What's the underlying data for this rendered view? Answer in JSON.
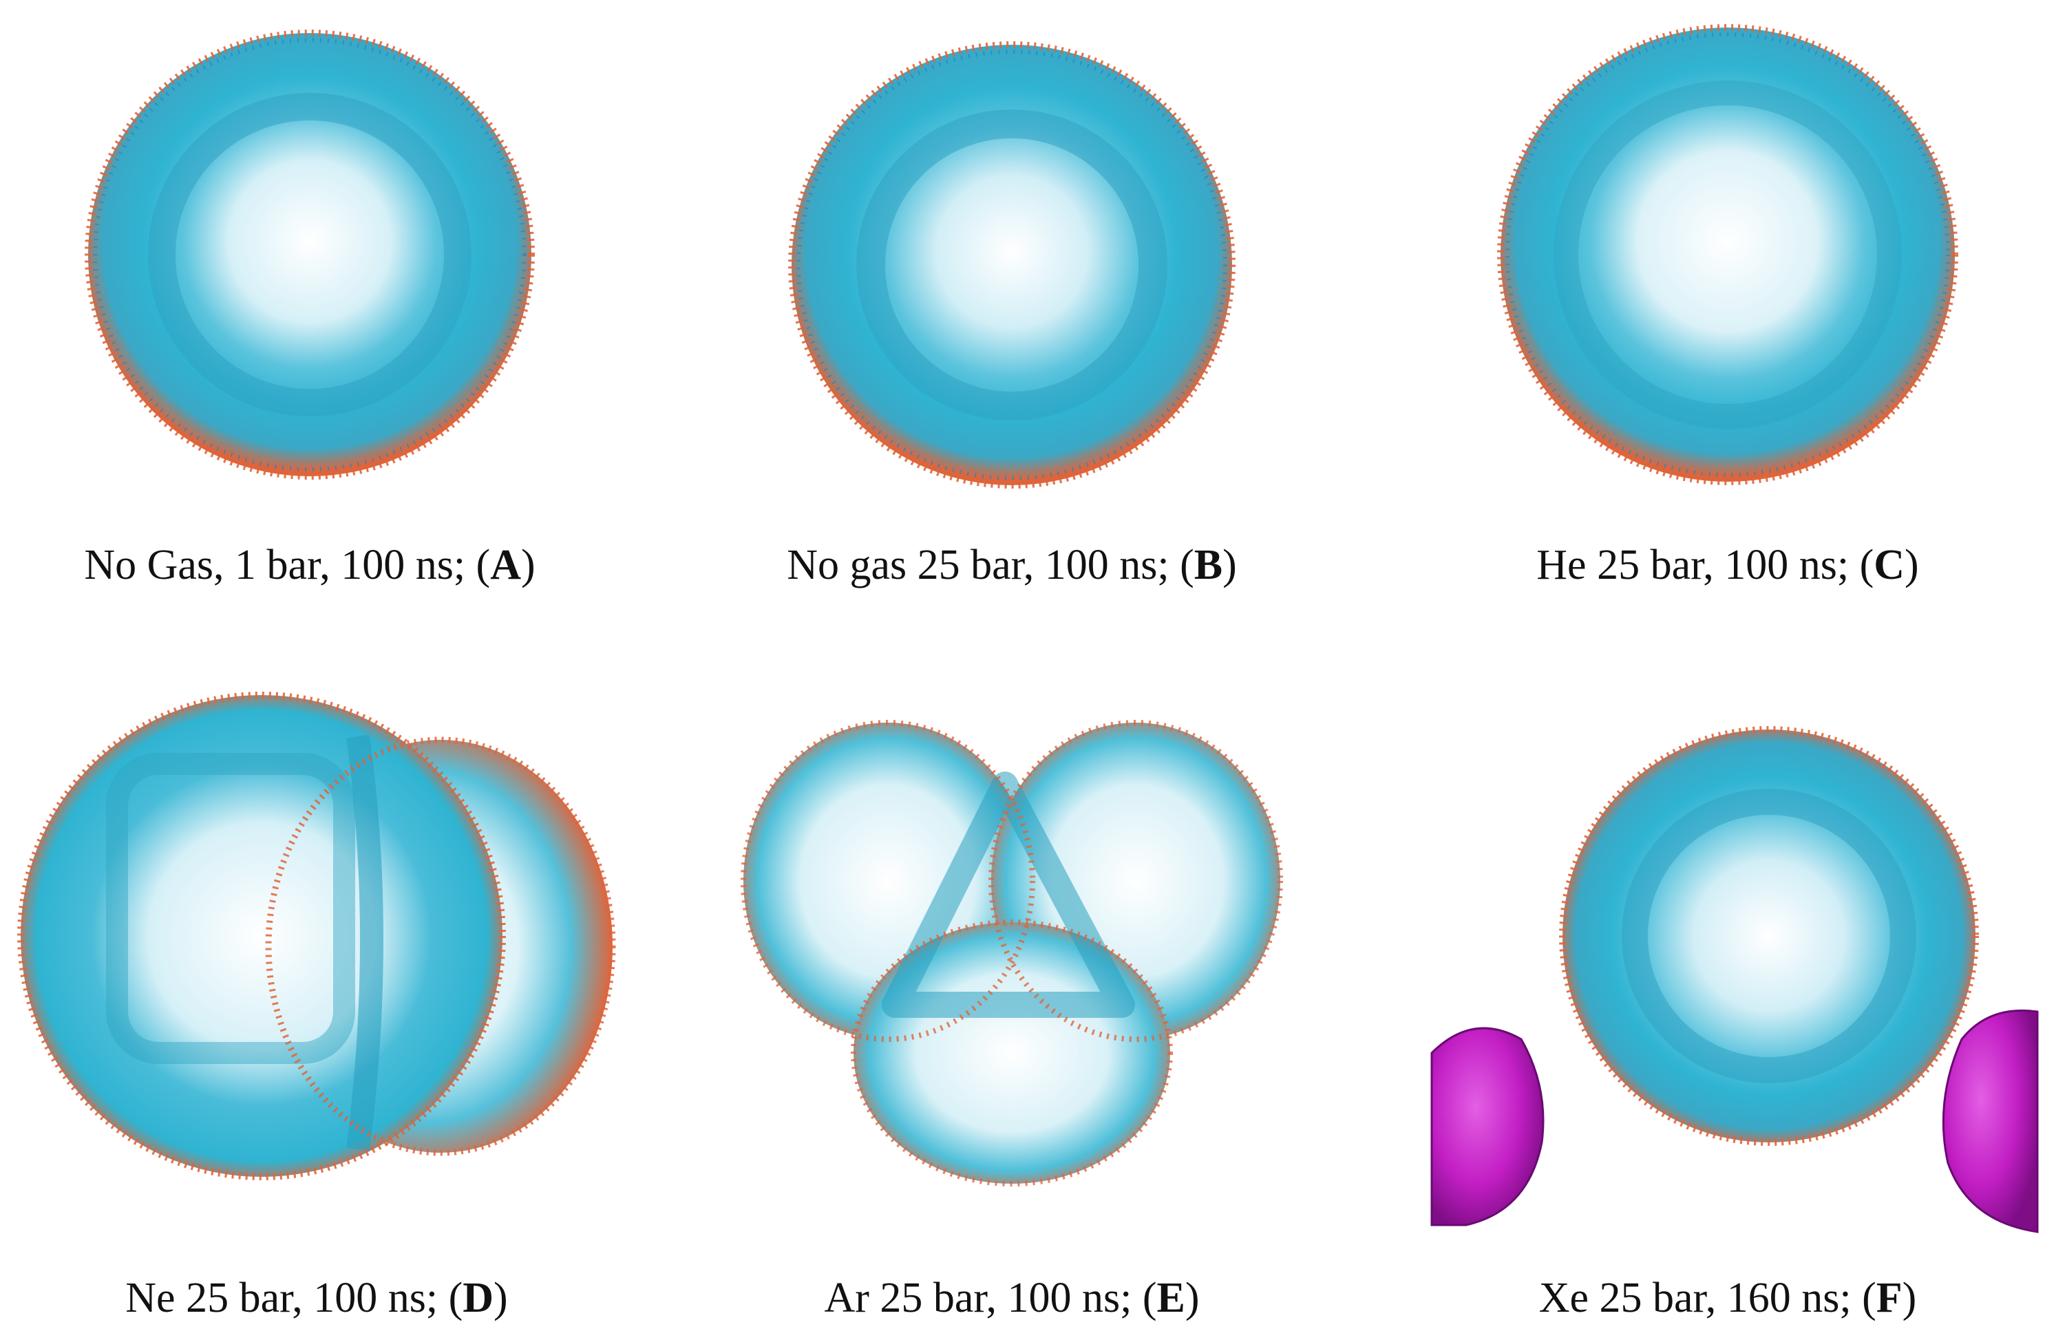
{
  "figure": {
    "panels": [
      {
        "id": "A",
        "caption_text": "No Gas, 1 bar, 100 ns; (",
        "letter": "A",
        "close": ")",
        "shape": "sphere",
        "colors": {
          "base": "#2fb4d2",
          "edge": "#e0643a",
          "core": "#ffffff"
        }
      },
      {
        "id": "B",
        "caption_text": "No gas 25 bar, 100 ns; (",
        "letter": "B",
        "close": ")",
        "shape": "sphere",
        "colors": {
          "base": "#2fb4d2",
          "edge": "#e0643a",
          "core": "#ffffff"
        }
      },
      {
        "id": "C",
        "caption_text": "He 25 bar, 100 ns; (",
        "letter": "C",
        "close": ")",
        "shape": "sphere",
        "colors": {
          "base": "#2fb4d2",
          "edge": "#e0643a",
          "core": "#ffffff"
        }
      },
      {
        "id": "D",
        "caption_text": "Ne 25 bar, 100 ns; (",
        "letter": "D",
        "close": ")",
        "shape": "double",
        "colors": {
          "base": "#2fb4d2",
          "edge": "#e0643a",
          "core": "#ffffff"
        }
      },
      {
        "id": "E",
        "caption_text": "Ar 25 bar, 100 ns; (",
        "letter": "E",
        "close": ")",
        "shape": "triple",
        "colors": {
          "base": "#2fb4d2",
          "edge": "#e0643a",
          "core": "#ffffff"
        }
      },
      {
        "id": "F",
        "caption_text": "Xe 25 bar, 160 ns; (",
        "letter": "F",
        "close": ")",
        "shape": "sphere-with-gas",
        "colors": {
          "base": "#2fb4d2",
          "edge": "#e0643a",
          "core": "#ffffff",
          "gas": "#c21ec4"
        }
      }
    ]
  }
}
